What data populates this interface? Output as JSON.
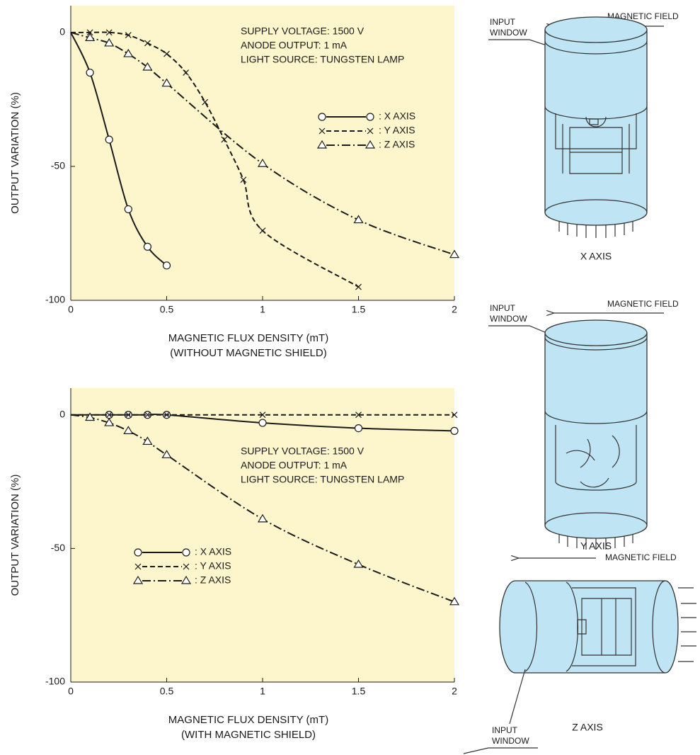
{
  "chart_data": [
    {
      "type": "line",
      "ylabel": "OUTPUT VARIATION (%)",
      "xlabel": "MAGNETIC FLUX DENSITY (mT)",
      "xlabel_note": "(WITHOUT MAGNETIC SHIELD)",
      "annotations": [
        "SUPPLY VOLTAGE: 1500 V",
        "ANODE OUTPUT: 1 mA",
        "LIGHT SOURCE: TUNGSTEN LAMP"
      ],
      "xlim": [
        0,
        2
      ],
      "xticks": [
        0,
        0.5,
        1,
        1.5,
        2
      ],
      "ylim": [
        -100,
        10
      ],
      "yticks": [
        -100,
        -50,
        0
      ],
      "background": "#fdf6cc",
      "series": [
        {
          "name": ": X AXIS",
          "color": "#1a1a1a",
          "linestyle": "solid",
          "marker": "circle",
          "x": [
            0,
            0.1,
            0.2,
            0.3,
            0.4,
            0.5
          ],
          "values": [
            0,
            -15,
            -40,
            -66,
            -80,
            -87
          ]
        },
        {
          "name": ": Y AXIS",
          "color": "#1a1a1a",
          "linestyle": "dashed",
          "marker": "x",
          "x": [
            0,
            0.1,
            0.2,
            0.3,
            0.4,
            0.5,
            0.6,
            0.7,
            0.8,
            0.9,
            1,
            1.5
          ],
          "values": [
            0,
            0,
            0,
            -1,
            -4,
            -8,
            -15,
            -26,
            -40,
            -55,
            -74,
            -95
          ]
        },
        {
          "name": ": Z AXIS",
          "color": "#1a1a1a",
          "linestyle": "dashdot",
          "marker": "triangle",
          "x": [
            0,
            0.1,
            0.2,
            0.3,
            0.4,
            0.5,
            1,
            1.5,
            2
          ],
          "values": [
            0,
            -2,
            -4,
            -8,
            -13,
            -19,
            -49,
            -70,
            -83
          ]
        }
      ]
    },
    {
      "type": "line",
      "ylabel": "OUTPUT VARIATION (%)",
      "xlabel": "MAGNETIC FLUX DENSITY (mT)",
      "xlabel_note": "(WITH MAGNETIC SHIELD)",
      "annotations": [
        "SUPPLY VOLTAGE: 1500 V",
        "ANODE OUTPUT: 1 mA",
        "LIGHT SOURCE: TUNGSTEN LAMP"
      ],
      "xlim": [
        0,
        2
      ],
      "xticks": [
        0,
        0.5,
        1,
        1.5,
        2
      ],
      "ylim": [
        -100,
        10
      ],
      "yticks": [
        -100,
        -50,
        0
      ],
      "background": "#fdf6cc",
      "series": [
        {
          "name": ": X AXIS",
          "color": "#1a1a1a",
          "linestyle": "solid",
          "marker": "circle",
          "x": [
            0,
            0.2,
            0.3,
            0.4,
            0.5,
            1,
            1.5,
            2
          ],
          "values": [
            0,
            0,
            0,
            0,
            0,
            -3,
            -5,
            -6
          ]
        },
        {
          "name": ": Y AXIS",
          "color": "#1a1a1a",
          "linestyle": "dashed",
          "marker": "x",
          "x": [
            0,
            0.2,
            0.3,
            0.4,
            0.5,
            1,
            1.5,
            2
          ],
          "values": [
            0,
            0,
            0,
            0,
            0,
            0,
            0,
            0
          ]
        },
        {
          "name": ": Z AXIS",
          "color": "#1a1a1a",
          "linestyle": "dashdot",
          "marker": "triangle",
          "x": [
            0,
            0.1,
            0.2,
            0.3,
            0.4,
            0.5,
            1,
            1.5,
            2
          ],
          "values": [
            0,
            -1,
            -3,
            -6,
            -10,
            -15,
            -39,
            -56,
            -70
          ]
        }
      ]
    }
  ],
  "diagrams": [
    {
      "field_label": "MAGNETIC FIELD",
      "window_label": [
        "INPUT",
        "WINDOW"
      ],
      "caption": "X AXIS"
    },
    {
      "field_label": "MAGNETIC FIELD",
      "window_label": [
        "INPUT",
        "WINDOW"
      ],
      "caption": "Y AXIS"
    },
    {
      "field_label": "MAGNETIC FIELD",
      "window_label": [
        "INPUT",
        "WINDOW"
      ],
      "caption": "Z AXIS"
    }
  ]
}
